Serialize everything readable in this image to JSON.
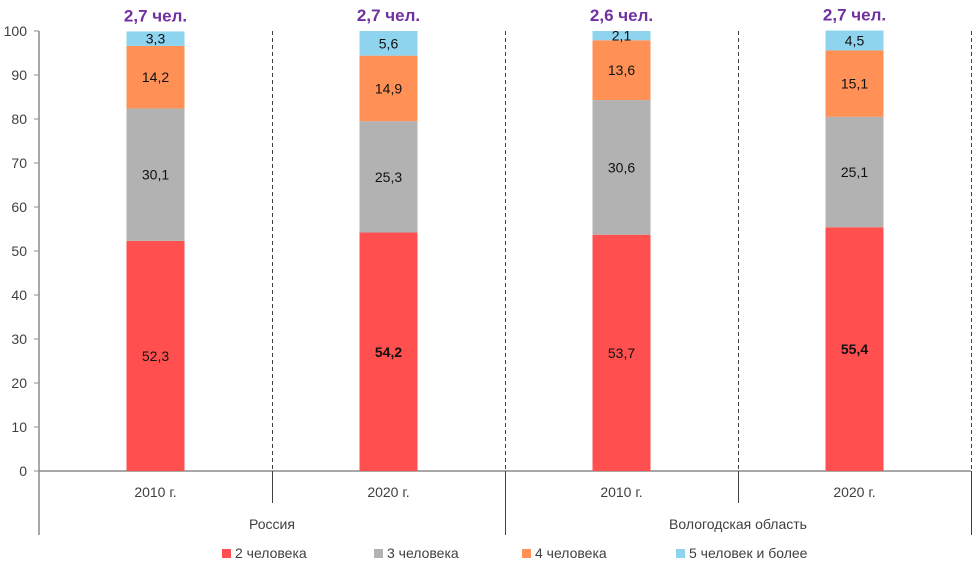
{
  "chart_data": {
    "type": "bar",
    "stacked": true,
    "title": "",
    "xlabel": "",
    "ylabel": "",
    "ylim": [
      0,
      100
    ],
    "yticks": [
      0,
      10,
      20,
      30,
      40,
      50,
      60,
      70,
      80,
      90,
      100
    ],
    "grid": false,
    "legend_position": "bottom",
    "groups": [
      {
        "label": "Россия",
        "categories": [
          "2010 г.",
          "2020 г."
        ]
      },
      {
        "label": "Вологодская область",
        "categories": [
          "2010 г.",
          "2020 г."
        ]
      }
    ],
    "categories": [
      "2010 г.",
      "2020 г.",
      "2010 г.",
      "2020 г."
    ],
    "series": [
      {
        "name": "2 человека",
        "color": "#ff4f4f",
        "values": [
          52.3,
          54.2,
          53.7,
          55.4
        ],
        "labels": [
          "52,3",
          "54,2",
          "53,7",
          "55,4"
        ],
        "bold": [
          false,
          true,
          false,
          true
        ]
      },
      {
        "name": "3 человека",
        "color": "#b2b2b2",
        "values": [
          30.1,
          25.3,
          30.6,
          25.1
        ],
        "labels": [
          "30,1",
          "25,3",
          "30,6",
          "25,1"
        ],
        "bold": [
          false,
          false,
          false,
          false
        ]
      },
      {
        "name": "4 человека",
        "color": "#ff9157",
        "values": [
          14.2,
          14.9,
          13.6,
          15.1
        ],
        "labels": [
          "14,2",
          "14,9",
          "13,6",
          "15,1"
        ],
        "bold": [
          false,
          false,
          false,
          false
        ]
      },
      {
        "name": "5 человек и более",
        "color": "#8fd4ef",
        "values": [
          3.3,
          5.6,
          2.1,
          4.5
        ],
        "labels": [
          "3,3",
          "5,6",
          "2,1",
          "4,5"
        ],
        "bold": [
          false,
          false,
          false,
          false
        ]
      }
    ],
    "annotations": {
      "average_household_size": [
        "2,7 чел.",
        "2,7 чел.",
        "2,6 чел.",
        "2,7 чел."
      ],
      "color": "#7030a0"
    }
  }
}
